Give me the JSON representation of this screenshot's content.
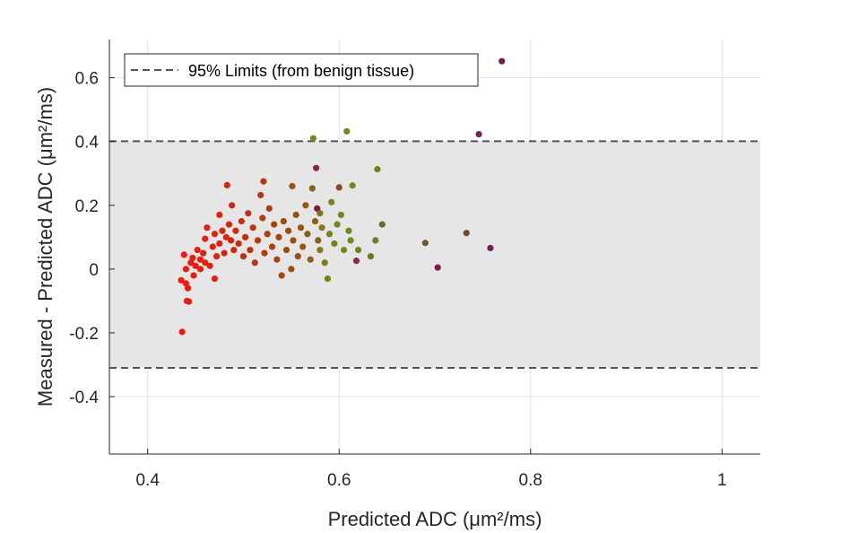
{
  "chart_data": {
    "type": "scatter",
    "xlabel": "Predicted ADC (μm²/ms)",
    "ylabel": "Measured - Predicted ADC (μm²/ms)",
    "xlim": [
      0.36,
      1.04
    ],
    "ylim": [
      -0.58,
      0.72
    ],
    "xticks": [
      0.4,
      0.6,
      0.8,
      1.0
    ],
    "xtick_labels": [
      "0.4",
      "0.6",
      "0.8",
      "1"
    ],
    "yticks": [
      -0.4,
      -0.2,
      0,
      0.2,
      0.4,
      0.6
    ],
    "ytick_labels": [
      "-0.4",
      "-0.2",
      "0",
      "0.2",
      "0.4",
      "0.6"
    ],
    "grid": true,
    "legend": {
      "location": "top-left",
      "entries": [
        "95% Limits (from benign tissue)"
      ]
    },
    "limits": {
      "upper": 0.401,
      "lower": -0.31
    },
    "colors": {
      "band": "#e6e6e6",
      "limit_line": "#555555",
      "grid": "#e3e3e3",
      "axis": "#262626"
    },
    "points": [
      {
        "x": 0.436,
        "y": -0.197,
        "color": "#ee1a10"
      },
      {
        "x": 0.435,
        "y": -0.035,
        "color": "#ee1a10"
      },
      {
        "x": 0.44,
        "y": -0.045,
        "color": "#ea1c10"
      },
      {
        "x": 0.441,
        "y": -0.1,
        "color": "#ea1c10"
      },
      {
        "x": 0.443,
        "y": -0.102,
        "color": "#e81c10"
      },
      {
        "x": 0.442,
        "y": -0.06,
        "color": "#ea1c10"
      },
      {
        "x": 0.438,
        "y": 0.045,
        "color": "#ee1a10"
      },
      {
        "x": 0.44,
        "y": 0.0,
        "color": "#ec1b10"
      },
      {
        "x": 0.445,
        "y": 0.02,
        "color": "#e81c10"
      },
      {
        "x": 0.447,
        "y": 0.035,
        "color": "#e81d10"
      },
      {
        "x": 0.45,
        "y": 0.01,
        "color": "#e61e10"
      },
      {
        "x": 0.448,
        "y": -0.02,
        "color": "#e61e10"
      },
      {
        "x": 0.452,
        "y": 0.06,
        "color": "#e41f10"
      },
      {
        "x": 0.455,
        "y": 0.03,
        "color": "#e22010"
      },
      {
        "x": 0.455,
        "y": 0.0,
        "color": "#e22010"
      },
      {
        "x": 0.458,
        "y": 0.05,
        "color": "#e02010"
      },
      {
        "x": 0.46,
        "y": 0.095,
        "color": "#e02010"
      },
      {
        "x": 0.462,
        "y": 0.13,
        "color": "#de2210"
      },
      {
        "x": 0.46,
        "y": 0.02,
        "color": "#de2210"
      },
      {
        "x": 0.465,
        "y": 0.01,
        "color": "#dc2210"
      },
      {
        "x": 0.468,
        "y": 0.07,
        "color": "#da2310"
      },
      {
        "x": 0.47,
        "y": -0.03,
        "color": "#da2310"
      },
      {
        "x": 0.47,
        "y": 0.11,
        "color": "#d82410"
      },
      {
        "x": 0.472,
        "y": 0.04,
        "color": "#d82410"
      },
      {
        "x": 0.475,
        "y": 0.17,
        "color": "#d62510"
      },
      {
        "x": 0.475,
        "y": 0.08,
        "color": "#d62510"
      },
      {
        "x": 0.478,
        "y": 0.12,
        "color": "#d42610"
      },
      {
        "x": 0.48,
        "y": 0.05,
        "color": "#d42610"
      },
      {
        "x": 0.482,
        "y": 0.1,
        "color": "#d22710"
      },
      {
        "x": 0.483,
        "y": 0.263,
        "color": "#d22710"
      },
      {
        "x": 0.485,
        "y": 0.14,
        "color": "#d02810"
      },
      {
        "x": 0.487,
        "y": 0.09,
        "color": "#ce2910"
      },
      {
        "x": 0.488,
        "y": 0.2,
        "color": "#ce2910"
      },
      {
        "x": 0.49,
        "y": 0.06,
        "color": "#cc2a10"
      },
      {
        "x": 0.492,
        "y": 0.12,
        "color": "#ca2b10"
      },
      {
        "x": 0.495,
        "y": 0.08,
        "color": "#c82c10"
      },
      {
        "x": 0.498,
        "y": 0.15,
        "color": "#c62e10"
      },
      {
        "x": 0.5,
        "y": 0.04,
        "color": "#c42f10"
      },
      {
        "x": 0.502,
        "y": 0.1,
        "color": "#c23010"
      },
      {
        "x": 0.505,
        "y": 0.175,
        "color": "#c03110"
      },
      {
        "x": 0.507,
        "y": 0.06,
        "color": "#be3210"
      },
      {
        "x": 0.51,
        "y": 0.13,
        "color": "#bc3410"
      },
      {
        "x": 0.512,
        "y": 0.02,
        "color": "#ba3510"
      },
      {
        "x": 0.515,
        "y": 0.09,
        "color": "#b83610"
      },
      {
        "x": 0.518,
        "y": 0.232,
        "color": "#b63810"
      },
      {
        "x": 0.52,
        "y": 0.16,
        "color": "#b43a10"
      },
      {
        "x": 0.521,
        "y": 0.275,
        "color": "#b43a10"
      },
      {
        "x": 0.522,
        "y": 0.05,
        "color": "#b23b10"
      },
      {
        "x": 0.525,
        "y": 0.11,
        "color": "#b03c10"
      },
      {
        "x": 0.527,
        "y": 0.19,
        "color": "#ae3e10"
      },
      {
        "x": 0.53,
        "y": 0.07,
        "color": "#ac4010"
      },
      {
        "x": 0.532,
        "y": 0.14,
        "color": "#aa4110"
      },
      {
        "x": 0.535,
        "y": 0.03,
        "color": "#a84210"
      },
      {
        "x": 0.537,
        "y": 0.1,
        "color": "#a64410"
      },
      {
        "x": 0.54,
        "y": -0.02,
        "color": "#a44610"
      },
      {
        "x": 0.542,
        "y": 0.15,
        "color": "#a24810"
      },
      {
        "x": 0.545,
        "y": 0.06,
        "color": "#a04a10"
      },
      {
        "x": 0.547,
        "y": 0.12,
        "color": "#9e4c10"
      },
      {
        "x": 0.55,
        "y": 0.0,
        "color": "#9c4e10"
      },
      {
        "x": 0.551,
        "y": 0.26,
        "color": "#9a5010"
      },
      {
        "x": 0.552,
        "y": 0.09,
        "color": "#9a5010"
      },
      {
        "x": 0.555,
        "y": 0.17,
        "color": "#985210"
      },
      {
        "x": 0.557,
        "y": 0.04,
        "color": "#965410"
      },
      {
        "x": 0.56,
        "y": 0.13,
        "color": "#945612"
      },
      {
        "x": 0.562,
        "y": 0.07,
        "color": "#925812"
      },
      {
        "x": 0.565,
        "y": 0.2,
        "color": "#905a12"
      },
      {
        "x": 0.567,
        "y": 0.11,
        "color": "#8e5c12"
      },
      {
        "x": 0.57,
        "y": 0.03,
        "color": "#8c5e14"
      },
      {
        "x": 0.572,
        "y": 0.253,
        "color": "#8a6014"
      },
      {
        "x": 0.573,
        "y": 0.41,
        "color": "#6e8c1e"
      },
      {
        "x": 0.575,
        "y": 0.15,
        "color": "#886214"
      },
      {
        "x": 0.576,
        "y": 0.317,
        "color": "#8a2440"
      },
      {
        "x": 0.577,
        "y": 0.19,
        "color": "#7a1c44"
      },
      {
        "x": 0.578,
        "y": 0.09,
        "color": "#866414"
      },
      {
        "x": 0.58,
        "y": 0.175,
        "color": "#7a7618"
      },
      {
        "x": 0.58,
        "y": 0.06,
        "color": "#847618"
      },
      {
        "x": 0.582,
        "y": 0.13,
        "color": "#807a18"
      },
      {
        "x": 0.585,
        "y": 0.02,
        "color": "#7e7c18"
      },
      {
        "x": 0.588,
        "y": -0.03,
        "color": "#7c7e1a"
      },
      {
        "x": 0.59,
        "y": 0.11,
        "color": "#7a801a"
      },
      {
        "x": 0.592,
        "y": 0.21,
        "color": "#78821a"
      },
      {
        "x": 0.595,
        "y": 0.08,
        "color": "#76841a"
      },
      {
        "x": 0.598,
        "y": 0.14,
        "color": "#74861c"
      },
      {
        "x": 0.6,
        "y": 0.256,
        "color": "#8a4a2a"
      },
      {
        "x": 0.602,
        "y": 0.17,
        "color": "#72881c"
      },
      {
        "x": 0.605,
        "y": 0.06,
        "color": "#708a1c"
      },
      {
        "x": 0.608,
        "y": 0.432,
        "color": "#6e8c1e"
      },
      {
        "x": 0.61,
        "y": 0.12,
        "color": "#6e8c1e"
      },
      {
        "x": 0.612,
        "y": 0.09,
        "color": "#6c8e1e"
      },
      {
        "x": 0.614,
        "y": 0.262,
        "color": "#6e8a1e"
      },
      {
        "x": 0.618,
        "y": 0.026,
        "color": "#8a2a40"
      },
      {
        "x": 0.62,
        "y": 0.06,
        "color": "#6a8a20"
      },
      {
        "x": 0.633,
        "y": 0.04,
        "color": "#6e7a24"
      },
      {
        "x": 0.638,
        "y": 0.09,
        "color": "#6a8222"
      },
      {
        "x": 0.64,
        "y": 0.313,
        "color": "#6a8222"
      },
      {
        "x": 0.645,
        "y": 0.14,
        "color": "#6e6a28"
      },
      {
        "x": 0.69,
        "y": 0.082,
        "color": "#6e5a30"
      },
      {
        "x": 0.703,
        "y": 0.005,
        "color": "#7a1e4c"
      },
      {
        "x": 0.733,
        "y": 0.113,
        "color": "#6e4a36"
      },
      {
        "x": 0.746,
        "y": 0.423,
        "color": "#78204e"
      },
      {
        "x": 0.758,
        "y": 0.066,
        "color": "#782050"
      },
      {
        "x": 0.77,
        "y": 0.652,
        "color": "#741c52"
      }
    ]
  }
}
